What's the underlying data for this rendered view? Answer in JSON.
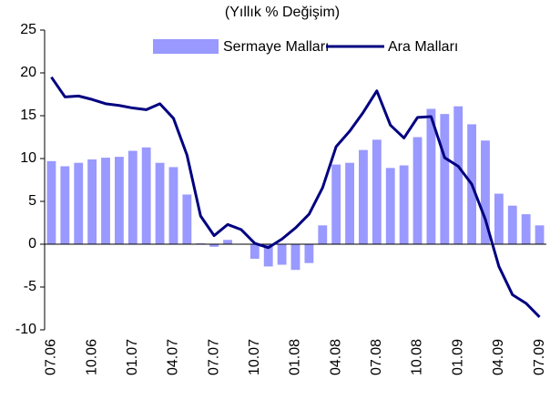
{
  "chart_data": {
    "type": "bar_line",
    "title": "(Yıllık % Değişim)",
    "categories": [
      "07.06",
      null,
      null,
      "10.06",
      null,
      null,
      "01.07",
      null,
      null,
      "04.07",
      null,
      null,
      "07.07",
      null,
      null,
      "10.07",
      null,
      null,
      "01.08",
      null,
      null,
      "04.08",
      null,
      null,
      "07.08",
      null,
      null,
      "10.08",
      null,
      null,
      "01.09",
      null,
      null,
      "04.09",
      null,
      null,
      "07.09"
    ],
    "series": [
      {
        "name": "Sermaye Malları",
        "type": "bar",
        "color": "#9999ff",
        "values": [
          9.7,
          9.1,
          9.5,
          9.9,
          10.1,
          10.2,
          10.9,
          11.3,
          9.5,
          9.0,
          5.8,
          0.1,
          -0.3,
          0.5,
          0.0,
          -1.7,
          -2.6,
          -2.4,
          -3.0,
          -2.2,
          2.2,
          9.3,
          9.5,
          11.0,
          12.2,
          8.9,
          9.2,
          12.5,
          15.8,
          15.2,
          16.1,
          14.0,
          12.1,
          5.9,
          4.5,
          3.5,
          2.2
        ]
      },
      {
        "name": "Ara Malları",
        "type": "line",
        "color": "#000080",
        "values": [
          19.5,
          17.2,
          17.3,
          16.9,
          16.4,
          16.2,
          15.9,
          15.7,
          16.4,
          14.7,
          10.4,
          3.3,
          1.0,
          2.3,
          1.7,
          0.1,
          -0.4,
          0.6,
          1.9,
          3.5,
          6.6,
          11.4,
          13.2,
          15.4,
          17.9,
          13.9,
          12.4,
          14.8,
          14.9,
          10.1,
          9.1,
          7.0,
          2.9,
          -2.6,
          -5.9,
          -6.9,
          -8.5
        ]
      }
    ],
    "ylim": [
      -10,
      25
    ],
    "yticks": [
      -10,
      -5,
      0,
      5,
      10,
      15,
      20,
      25
    ],
    "legend": "top"
  }
}
